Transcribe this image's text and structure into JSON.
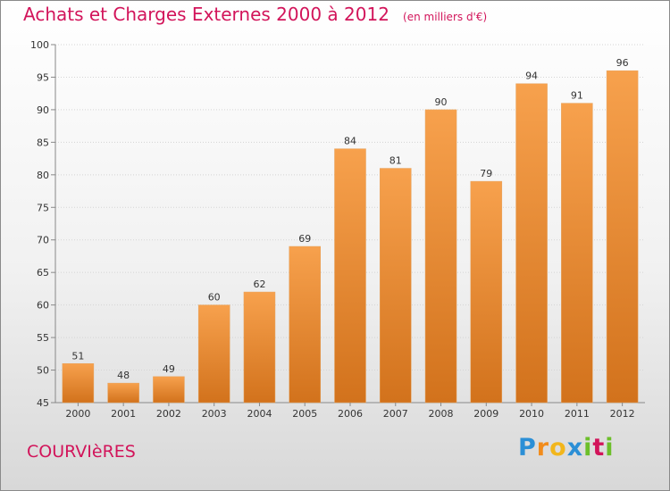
{
  "title": "Achats et Charges Externes 2000 à 2012",
  "subtitle": "(en milliers d'€)",
  "commune": "COURVIèRES",
  "logo": {
    "text": "Proxiti",
    "letters": [
      {
        "ch": "P",
        "color": "#2b8fd6"
      },
      {
        "ch": "r",
        "color": "#f28c1c"
      },
      {
        "ch": "o",
        "color": "#f2b61c"
      },
      {
        "ch": "x",
        "color": "#2b8fd6"
      },
      {
        "ch": "i",
        "color": "#6cbf2a"
      },
      {
        "ch": "t",
        "color": "#d2145a"
      },
      {
        "ch": "i",
        "color": "#6cbf2a"
      }
    ]
  },
  "colors": {
    "accent": "#d2145a",
    "bar_top": "#f7a14d",
    "bar_bottom": "#d2721c"
  },
  "chart_data": {
    "type": "bar",
    "categories": [
      "2000",
      "2001",
      "2002",
      "2003",
      "2004",
      "2005",
      "2006",
      "2007",
      "2008",
      "2009",
      "2010",
      "2011",
      "2012"
    ],
    "values": [
      51,
      48,
      49,
      60,
      62,
      69,
      84,
      81,
      90,
      79,
      94,
      91,
      96
    ],
    "ylim": [
      45,
      100
    ],
    "yticks": [
      45,
      50,
      55,
      60,
      65,
      70,
      75,
      80,
      85,
      90,
      95,
      100
    ],
    "grid": true,
    "xlabel": "",
    "ylabel": ""
  }
}
